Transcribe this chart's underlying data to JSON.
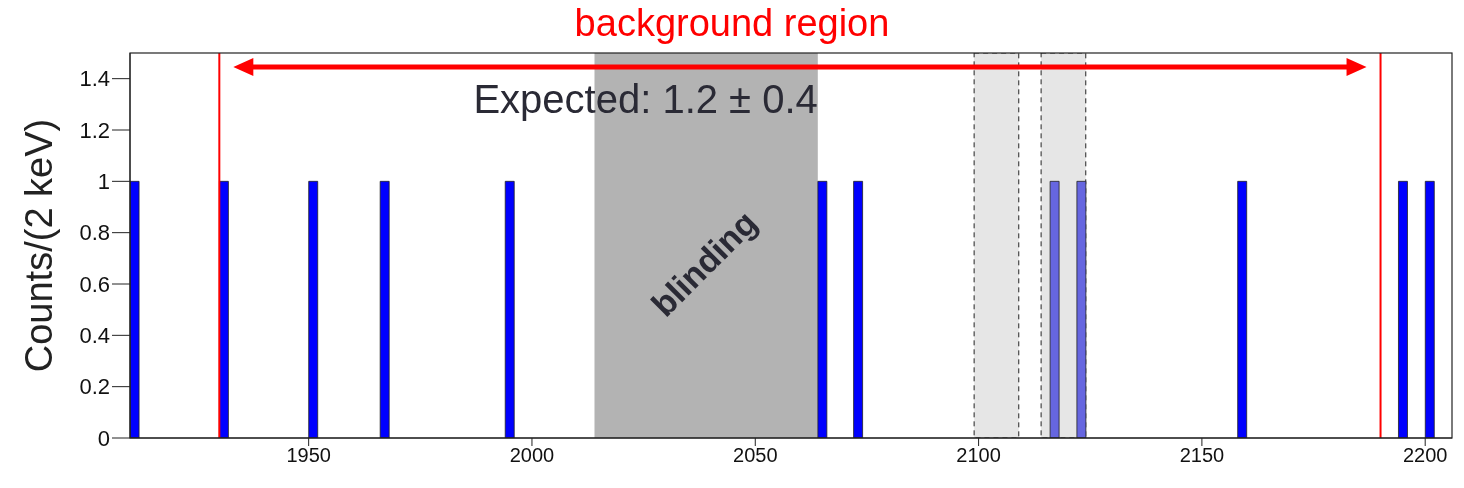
{
  "chart_data": {
    "type": "bar",
    "title": "background region",
    "ylabel": "Counts/(2 keV)",
    "x": [
      1911,
      1931,
      1951,
      1967,
      1995,
      2065,
      2073,
      2117,
      2123,
      2159,
      2195,
      2201
    ],
    "values": [
      1,
      1,
      1,
      1,
      1,
      1,
      1,
      1,
      1,
      1,
      1,
      1
    ],
    "colors": [
      "#0000ff",
      "#0000ff",
      "#0000ff",
      "#0000ff",
      "#0000ff",
      "#0000ff",
      "#0000ff",
      "#6666e0",
      "#6666e0",
      "#0000ff",
      "#0000ff",
      "#0000ff"
    ],
    "xlim": [
      1910,
      2206
    ],
    "xticks": [
      1950,
      2000,
      2050,
      2100,
      2150,
      2200
    ],
    "ylim": [
      0,
      1.5
    ],
    "yticks": [
      0,
      0.2,
      0.4,
      0.6,
      0.8,
      1,
      1.2,
      1.4
    ],
    "ref_lines": [
      {
        "axis": "x",
        "value": 1930,
        "color": "#ff0000"
      },
      {
        "axis": "x",
        "value": 2190,
        "color": "#ff0000"
      }
    ],
    "bands": [
      {
        "axis": "x",
        "from": 2014,
        "to": 2064,
        "label": "blinding",
        "color": "#b3b3b3"
      },
      {
        "axis": "x",
        "from": 2099,
        "to": 2109,
        "color": "#e6e6e6"
      },
      {
        "axis": "x",
        "from": 2114,
        "to": 2124,
        "color": "#e6e6e6"
      }
    ],
    "annotations": [
      "Expected: 1.2 ± 0.4"
    ],
    "grid": false,
    "legend": false
  }
}
